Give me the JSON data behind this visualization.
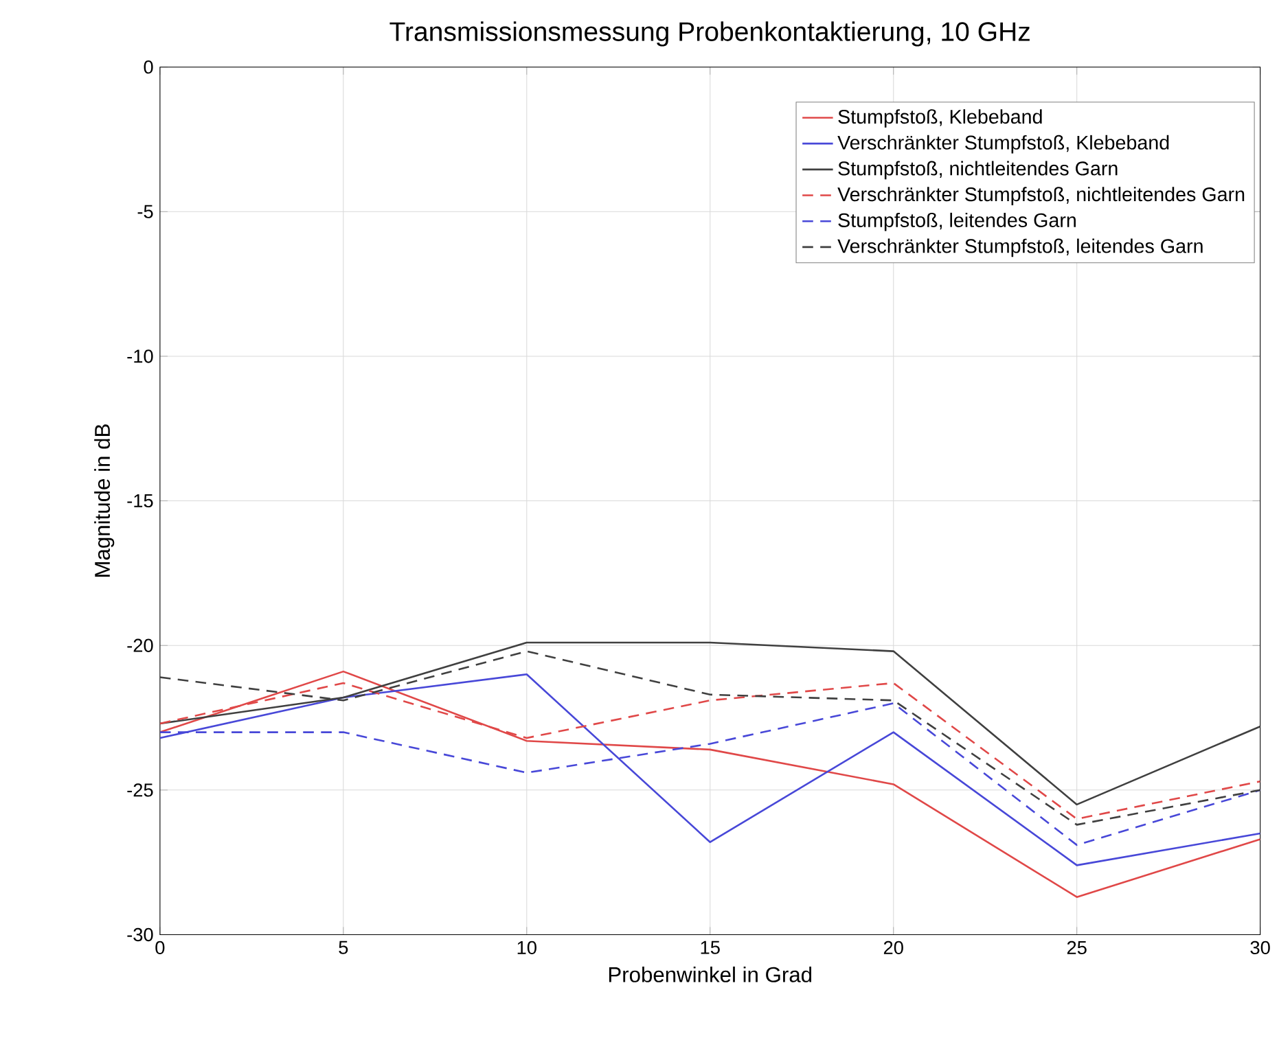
{
  "chart_data": {
    "type": "line",
    "title": "Transmissionsmessung Probenkontaktierung, 10 GHz",
    "xlabel": "Probenwinkel in Grad",
    "ylabel": "Magnitude in dB",
    "x": [
      0,
      5,
      10,
      15,
      20,
      25,
      30
    ],
    "series": [
      {
        "name": "Stumpfstoß, Klebeband",
        "color": "#e04848",
        "line_style": "solid",
        "values": [
          -23.0,
          -20.9,
          -23.3,
          -23.6,
          -24.8,
          -28.7,
          -26.7
        ]
      },
      {
        "name": "Verschränkter Stumpfstoß, Klebeband",
        "color": "#4848d8",
        "line_style": "solid",
        "values": [
          -23.2,
          -21.8,
          -21.0,
          -26.8,
          -23.0,
          -27.6,
          -26.5
        ]
      },
      {
        "name": "Stumpfstoß, nichtleitendes Garn",
        "color": "#404040",
        "line_style": "solid",
        "values": [
          -22.7,
          -21.8,
          -19.9,
          -19.9,
          -20.2,
          -25.5,
          -22.8
        ]
      },
      {
        "name": "Verschränkter Stumpfstoß, nichtleitendes Garn",
        "color": "#e04848",
        "line_style": "dashed",
        "values": [
          -22.7,
          -21.3,
          -23.2,
          -21.9,
          -21.3,
          -26.0,
          -24.7
        ]
      },
      {
        "name": "Stumpfstoß, leitendes Garn",
        "color": "#4848d8",
        "line_style": "dashed",
        "values": [
          -23.0,
          -23.0,
          -24.4,
          -23.4,
          -22.0,
          -26.9,
          -25.0
        ]
      },
      {
        "name": "Verschränkter Stumpfstoß, leitendes Garn",
        "color": "#404040",
        "line_style": "dashed",
        "values": [
          -21.1,
          -21.9,
          -20.2,
          -21.7,
          -21.9,
          -26.2,
          -25.0
        ]
      }
    ],
    "xlim": [
      0,
      30
    ],
    "ylim": [
      -30,
      0
    ],
    "xticks": [
      0,
      5,
      10,
      15,
      20,
      25,
      30
    ],
    "yticks": [
      -30,
      -25,
      -20,
      -15,
      -10,
      -5,
      0
    ],
    "grid": true,
    "legend": "top right",
    "marker": "none"
  }
}
